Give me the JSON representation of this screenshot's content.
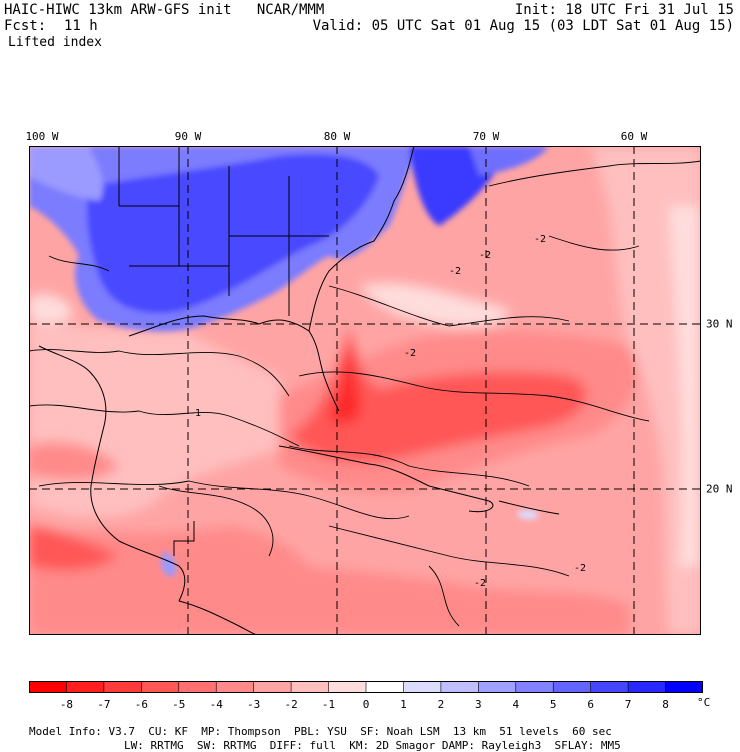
{
  "header": {
    "model_line": "HAIC-HIWC 13km ARW-GFS init   NCAR/MMM",
    "fcst_label": "Fcst:",
    "fcst_value": "11 h",
    "field": "Lifted index",
    "init_line": "Init: 18 UTC Fri 31 Jul 15",
    "valid_line": "Valid: 05 UTC Sat 01 Aug 15 (03 LDT Sat 01 Aug 15)"
  },
  "map": {
    "lon_labels": [
      "100 W",
      "90 W",
      "80 W",
      "70 W",
      "60 W"
    ],
    "lat_labels": [
      "30 N",
      "20 N"
    ],
    "contour_labels": [
      "-2",
      "-2",
      "-2",
      "-2",
      "-1",
      "-2",
      "-2"
    ],
    "region": "Gulf of Mexico / Caribbean / Southeastern US"
  },
  "colorbar": {
    "labels": [
      "-8",
      "-7",
      "-6",
      "-5",
      "-4",
      "-3",
      "-2",
      "-1",
      "0",
      "1",
      "2",
      "3",
      "4",
      "5",
      "6",
      "7",
      "8"
    ],
    "unit": "°C",
    "colors": [
      "#ff0000",
      "#ff1f1f",
      "#ff3c3c",
      "#ff5656",
      "#ff7070",
      "#ff8a8a",
      "#ffa4a4",
      "#ffbfbf",
      "#ffdddd",
      "#ffffff",
      "#dcdcff",
      "#bfbfff",
      "#a0a0ff",
      "#8282ff",
      "#6464ff",
      "#4646ff",
      "#2828ff",
      "#0000ff"
    ]
  },
  "model_info": {
    "line1": [
      "Model Info: V3.7",
      "CU: KF",
      "MP: Thompson",
      "PBL: YSU",
      "SF: Noah LSM",
      "13 km",
      "51 levels",
      "60 sec"
    ],
    "line2": [
      "LW: RRTMG",
      "SW: RRTMG",
      "DIFF: full",
      "KM: 2D Smagor",
      "DAMP: Rayleigh3",
      "SFLAY: MM5"
    ]
  }
}
